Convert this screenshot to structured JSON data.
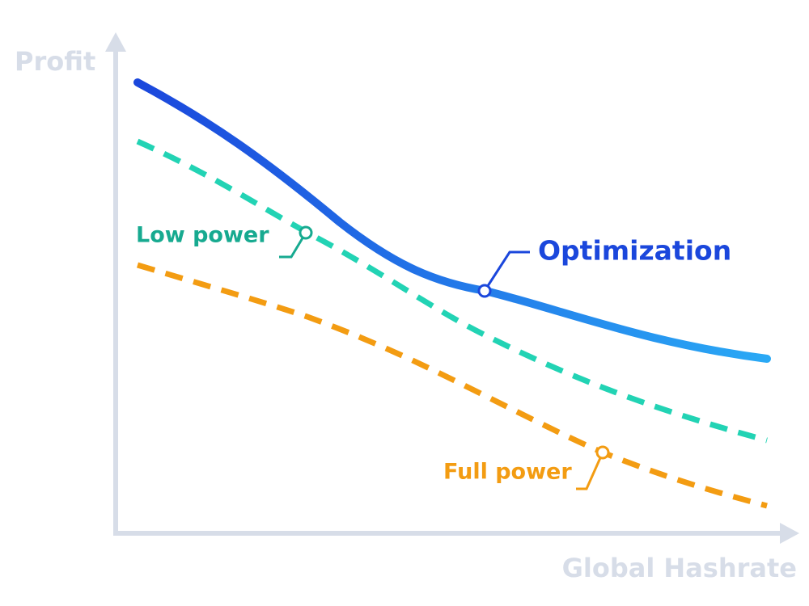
{
  "axes": {
    "y_label": "Profit",
    "x_label": "Global Hashrate"
  },
  "curves": [
    {
      "label": "Optimization"
    },
    {
      "label": "Low power"
    },
    {
      "label": "Full power"
    }
  ]
}
